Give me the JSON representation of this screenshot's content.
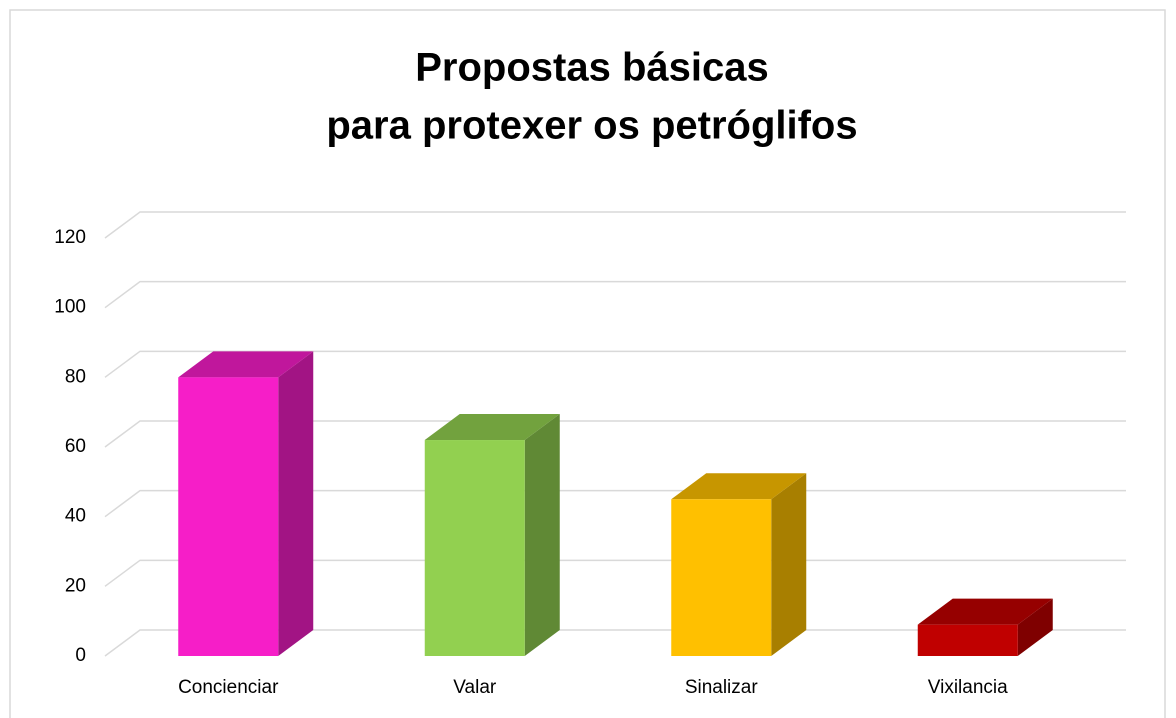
{
  "chart_data": {
    "type": "bar3d",
    "title": [
      "Propostas  básicas",
      "para protexer os petróglifos"
    ],
    "categories": [
      "Concienciar",
      "Valar",
      "Sinalizar",
      "Vixilancia"
    ],
    "values": [
      80,
      62,
      45,
      9
    ],
    "colors": [
      "#f61ec8",
      "#92d050",
      "#ffc000",
      "#c00000"
    ],
    "ylim": [
      0,
      120
    ],
    "yticks": [
      0,
      20,
      40,
      60,
      80,
      100,
      120
    ],
    "grid": true
  }
}
